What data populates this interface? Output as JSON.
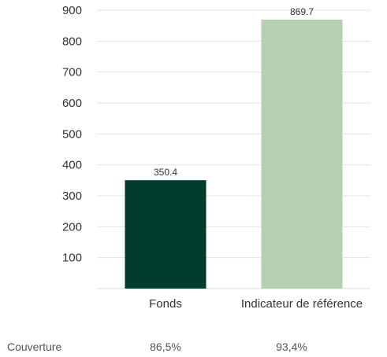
{
  "chart_data": {
    "type": "bar",
    "categories": [
      "Fonds",
      "Indicateur de référence"
    ],
    "values": [
      350.4,
      869.7
    ],
    "value_labels": [
      "350.4",
      "869.7"
    ],
    "colors": [
      "#003d2e",
      "#b5cfb3"
    ],
    "ylim": [
      0,
      900
    ],
    "yticks": [
      100,
      200,
      300,
      400,
      500,
      600,
      700,
      800,
      900
    ],
    "grid": true,
    "title": "",
    "xlabel": "",
    "ylabel": ""
  },
  "coverage": {
    "label": "Couverture",
    "values": [
      "86,5%",
      "93,4%"
    ]
  }
}
